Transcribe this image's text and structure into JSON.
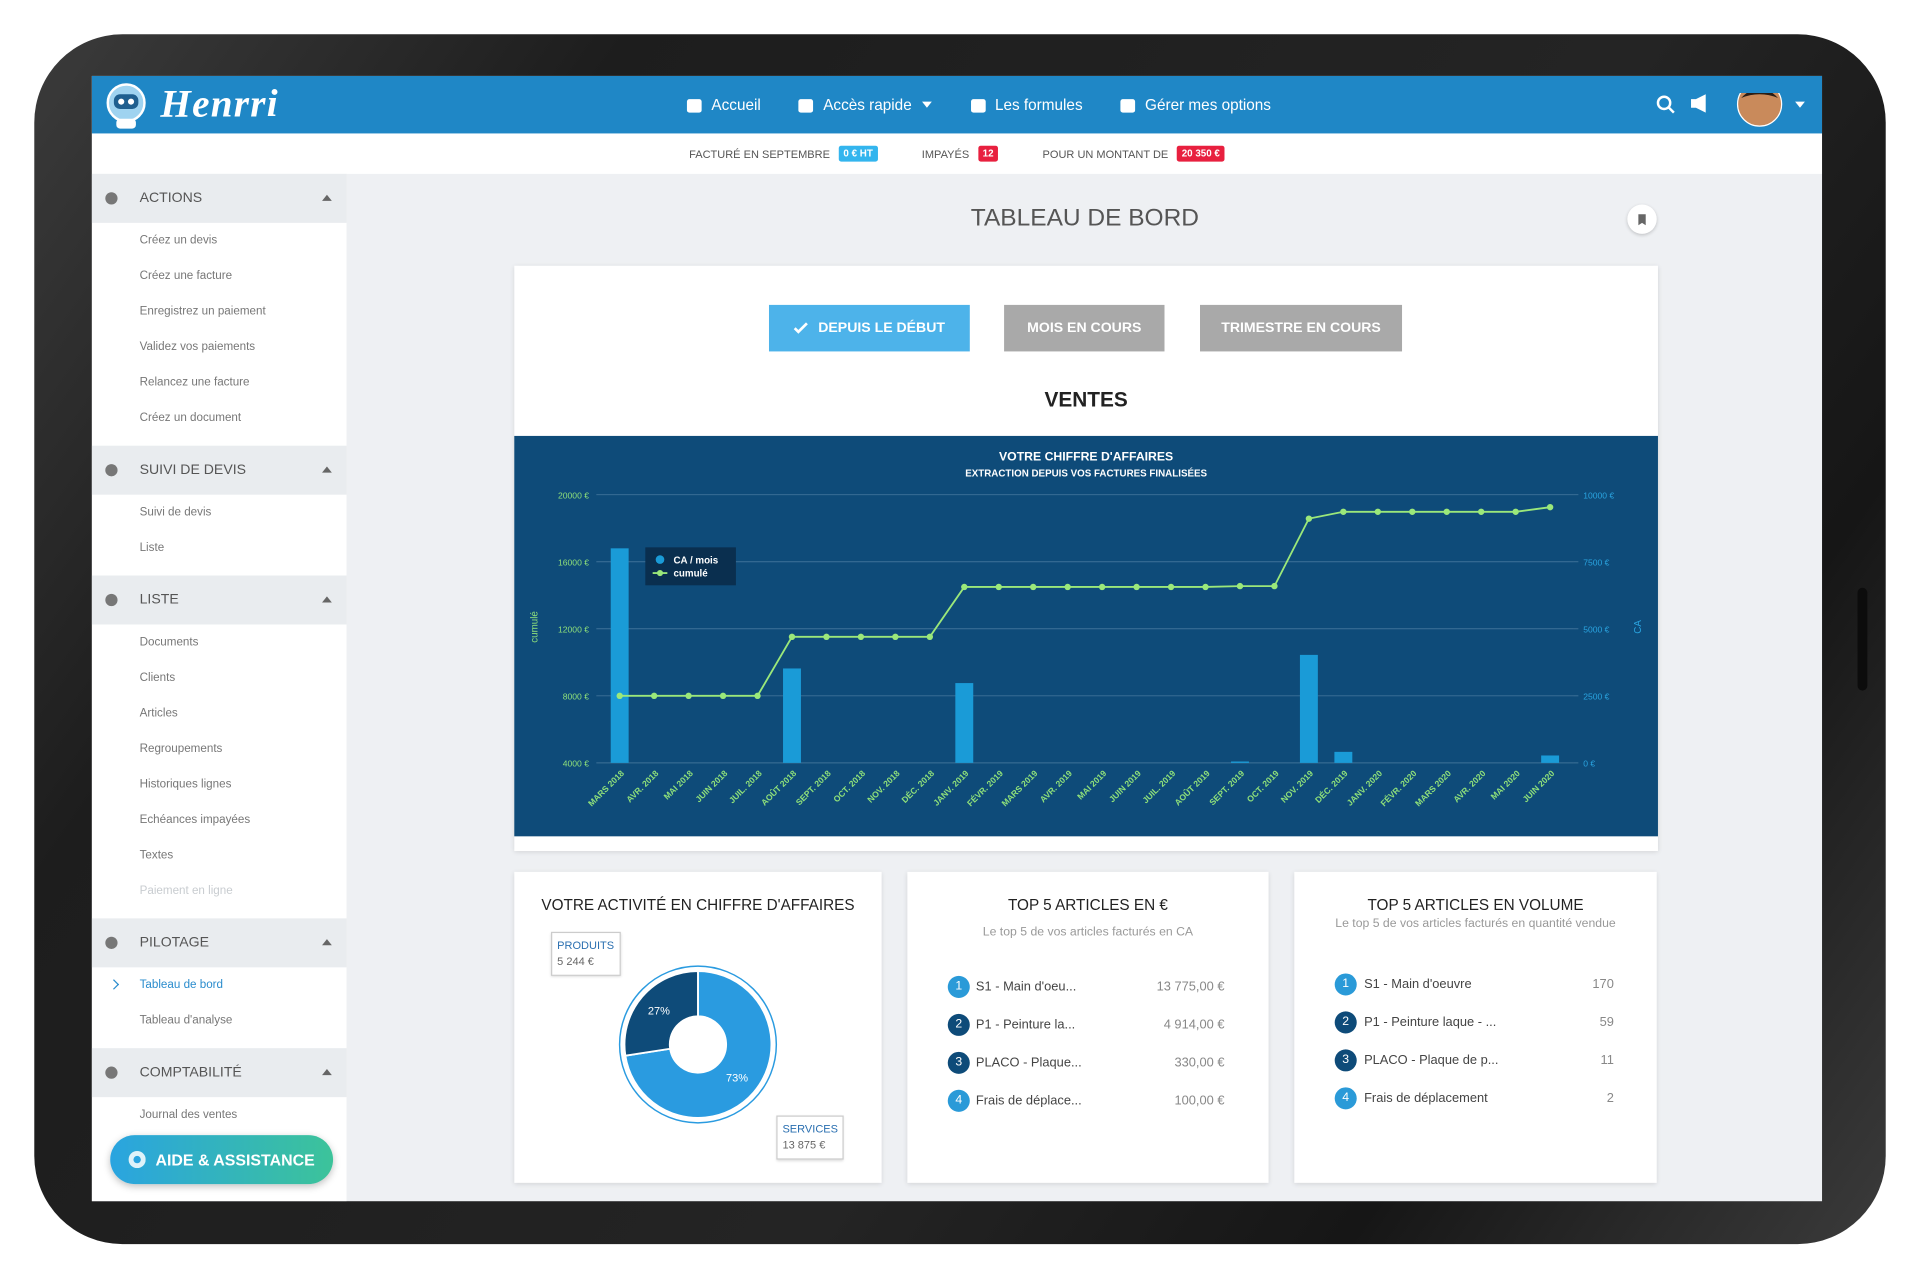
{
  "nav": {
    "logo": "Henrri",
    "items": [
      "Accueil",
      "Accès rapide",
      "Les formules",
      "Gérer mes options"
    ]
  },
  "status": [
    {
      "label": "FACTURÉ EN SEPTEMBRE",
      "badge": "0 € HT"
    },
    {
      "label": "IMPAYÉS",
      "badge": "12"
    },
    {
      "label": "POUR UN MONTANT DE",
      "badge": "20 350 €"
    }
  ],
  "sidebar": [
    {
      "title": "ACTIONS",
      "items": [
        "Créez un devis",
        "Créez une facture",
        "Enregistrez un paiement",
        "Validez vos paiements",
        "Relancez une facture",
        "Créez un document"
      ]
    },
    {
      "title": "SUIVI DE DEVIS",
      "items": [
        "Suivi de devis",
        "Liste"
      ]
    },
    {
      "title": "LISTE",
      "items": [
        "Documents",
        "Clients",
        "Articles",
        "Regroupements",
        "Historiques lignes",
        "Echéances impayées",
        "Textes",
        "Paiement en ligne"
      ]
    },
    {
      "title": "PILOTAGE",
      "items": [
        "Tableau de bord",
        "Tableau d'analyse"
      ]
    },
    {
      "title": "COMPTABILITÉ",
      "items": [
        "Journal des ventes"
      ]
    }
  ],
  "help_button": "AIDE & ASSISTANCE",
  "page_title": "TABLEAU DE BORD",
  "filters": [
    "DEPUIS LE DÉBUT",
    "MOIS EN COURS",
    "TRIMESTRE EN COURS"
  ],
  "section_title": "VENTES",
  "chart_data": [
    {
      "type": "combo",
      "title": "VOTRE CHIFFRE D'AFFAIRES",
      "subtitle": "EXTRACTION DEPUIS VOS FACTURES FINALISÉES",
      "ylabel": "cumulé",
      "y2label": "CA",
      "categories": [
        "MARS 2018",
        "AVR. 2018",
        "MAI 2018",
        "JUIN 2018",
        "JUIL. 2018",
        "AOÛT 2018",
        "SEPT. 2018",
        "OCT. 2018",
        "NOV. 2018",
        "DÉC. 2018",
        "JANV. 2019",
        "FÉVR. 2019",
        "MARS 2019",
        "AVR. 2019",
        "MAI 2019",
        "JUIN 2019",
        "JUIL. 2019",
        "AOÛT 2019",
        "SEPT. 2019",
        "OCT. 2019",
        "NOV. 2019",
        "DÉC. 2019",
        "JANV. 2020",
        "FÉVR. 2020",
        "MARS 2020",
        "AVR. 2020",
        "MAI 2020",
        "JUIN 2020"
      ],
      "series": [
        {
          "name": "CA / mois",
          "type": "bar",
          "axis": "y2",
          "color": "#1a9bd7",
          "values": [
            8000,
            0,
            0,
            0,
            0,
            3520,
            0,
            0,
            0,
            0,
            2975,
            0,
            0,
            0,
            0,
            0,
            0,
            0,
            50,
            0,
            4026,
            410,
            0,
            0,
            0,
            0,
            0,
            275
          ]
        },
        {
          "name": "cumulé",
          "type": "line",
          "color": "#9be87a",
          "values": [
            8000,
            8000,
            8000,
            8000,
            8000,
            11520,
            11520,
            11520,
            11520,
            11520,
            14495,
            14495,
            14495,
            14495,
            14495,
            14495,
            14495,
            14495,
            14545,
            14545,
            18571,
            18981,
            18981,
            18981,
            18981,
            18981,
            18981,
            19256
          ]
        }
      ],
      "ylim": [
        4000,
        20000
      ],
      "yticks": [
        {
          "value": 4000,
          "label": "4000 €"
        },
        {
          "value": 8000,
          "label": "8000 €"
        },
        {
          "value": 12000,
          "label": "12000 €"
        },
        {
          "value": 16000,
          "label": "16000 €"
        },
        {
          "value": 20000,
          "label": "20000 €"
        }
      ],
      "y2lim": [
        0,
        10000
      ],
      "y2ticks": [
        {
          "value": 0,
          "label": "0 €"
        },
        {
          "value": 2500,
          "label": "2500 €"
        },
        {
          "value": 5000,
          "label": "5000 €"
        },
        {
          "value": 7500,
          "label": "7500 €"
        },
        {
          "value": 10000,
          "label": "10000 €"
        }
      ],
      "grid": true,
      "legend": "upper-left"
    },
    {
      "type": "pie",
      "title": "VOTRE ACTIVITÉ EN CHIFFRE D'AFFAIRES",
      "donut": true,
      "categories": [
        "PRODUITS",
        "SERVICES"
      ],
      "values": [
        5244,
        13875
      ],
      "value_labels": [
        "5 244 €",
        "13 875 €"
      ],
      "percent_labels": [
        "27%",
        "73%"
      ],
      "colors": [
        "#0e4b79",
        "#2a9be0"
      ]
    }
  ],
  "top_ca": {
    "title": "TOP 5 ARTICLES EN €",
    "subtitle": "Le top 5 de vos articles facturés en CA",
    "rows": [
      [
        1,
        "S1 - Main d'oeu...",
        "13 775,00 €"
      ],
      [
        2,
        "P1 - Peinture la...",
        "4 914,00 €"
      ],
      [
        3,
        "PLACO - Plaque...",
        "330,00 €"
      ],
      [
        4,
        "Frais de déplace...",
        "100,00 €"
      ]
    ]
  },
  "top_volume": {
    "title": "TOP 5 ARTICLES EN VOLUME",
    "subtitle": "Le top 5 de vos articles facturés en quantité vendue",
    "rows": [
      [
        1,
        "S1 - Main d'oeuvre",
        170
      ],
      [
        2,
        "P1 - Peinture laque - ...",
        59
      ],
      [
        3,
        "PLACO - Plaque de p...",
        11
      ],
      [
        4,
        "Frais de déplacement",
        2
      ]
    ]
  }
}
